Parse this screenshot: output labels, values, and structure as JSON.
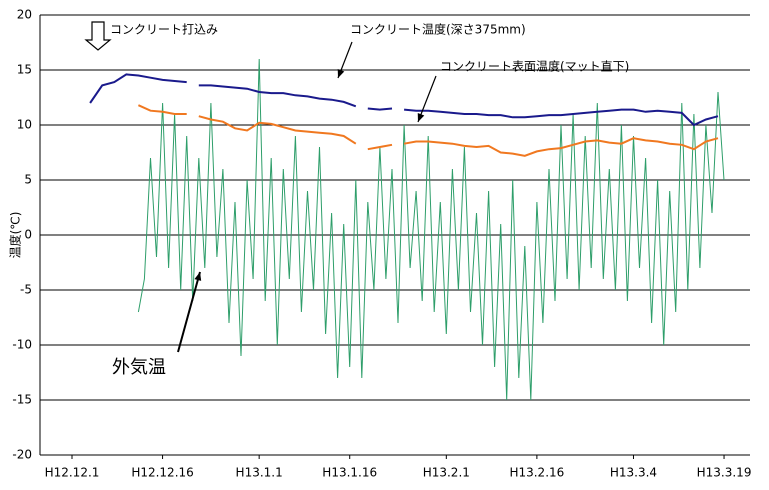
{
  "chart_data": {
    "type": "line",
    "y_label": "温度(℃)",
    "annotations": [
      "コンクリート打込み"
    ],
    "xlim": [
      -5.3,
      112.3
    ],
    "xticks": [
      {
        "value": 0,
        "label": "H12.12.1"
      },
      {
        "value": 15,
        "label": "H12.12.16"
      },
      {
        "value": 31,
        "label": "H13.1.1"
      },
      {
        "value": 46,
        "label": "H13.1.16"
      },
      {
        "value": 62,
        "label": "H13.2.1"
      },
      {
        "value": 77,
        "label": "H13.2.16"
      },
      {
        "value": 93,
        "label": "H13.3.4"
      },
      {
        "value": 108,
        "label": "H13.3.19"
      }
    ],
    "ylim": [
      -20,
      20
    ],
    "yticks": [
      -20,
      -15,
      -10,
      -5,
      0,
      5,
      10,
      15,
      20
    ],
    "grid": true,
    "series": [
      {
        "name": "コンクリート温度(深さ375mm)",
        "color": "#1a1a8c",
        "x": [
          3,
          5,
          7,
          9,
          11,
          13,
          15,
          17,
          19,
          20,
          21,
          23,
          25,
          27,
          29,
          31,
          33,
          35,
          37,
          39,
          41,
          43,
          45,
          47,
          48,
          49,
          51,
          53,
          54,
          55,
          57,
          59,
          61,
          63,
          65,
          67,
          69,
          71,
          73,
          75,
          77,
          79,
          81,
          83,
          85,
          87,
          89,
          91,
          93,
          95,
          97,
          99,
          101,
          103,
          105,
          107
        ],
        "values": [
          12,
          13.6,
          13.9,
          14.6,
          14.5,
          14.3,
          14.1,
          14.0,
          13.9,
          null,
          13.6,
          13.6,
          13.5,
          13.4,
          13.3,
          13.0,
          12.9,
          12.9,
          12.7,
          12.6,
          12.4,
          12.3,
          12.1,
          11.7,
          null,
          11.5,
          11.4,
          11.5,
          null,
          11.4,
          11.3,
          11.3,
          11.2,
          11.1,
          11.0,
          11.0,
          10.9,
          10.9,
          10.7,
          10.7,
          10.8,
          10.9,
          10.9,
          11.0,
          11.1,
          11.2,
          11.3,
          11.4,
          11.4,
          11.2,
          11.3,
          11.2,
          11.1,
          10.0,
          10.5,
          10.8
        ]
      },
      {
        "name": "コンクリート表面温度(マット直下)",
        "color": "#f07820",
        "x": [
          11,
          13,
          15,
          17,
          19,
          20,
          21,
          23,
          25,
          27,
          29,
          31,
          33,
          35,
          37,
          39,
          41,
          43,
          45,
          47,
          48,
          49,
          51,
          53,
          54,
          55,
          57,
          59,
          61,
          63,
          65,
          67,
          69,
          71,
          73,
          75,
          77,
          79,
          81,
          83,
          85,
          87,
          89,
          91,
          93,
          95,
          97,
          99,
          101,
          103,
          105,
          107
        ],
        "values": [
          11.8,
          11.3,
          11.2,
          11.0,
          11.0,
          null,
          10.8,
          10.5,
          10.3,
          9.7,
          9.5,
          10.2,
          10.1,
          9.8,
          9.5,
          9.4,
          9.3,
          9.2,
          9.0,
          8.3,
          null,
          7.8,
          8.0,
          8.2,
          null,
          8.3,
          8.5,
          8.5,
          8.4,
          8.3,
          8.1,
          8.0,
          8.1,
          7.5,
          7.4,
          7.2,
          7.6,
          7.8,
          7.9,
          8.2,
          8.5,
          8.6,
          8.4,
          8.3,
          8.8,
          8.6,
          8.5,
          8.3,
          8.2,
          7.8,
          8.5,
          8.8
        ]
      },
      {
        "name": "外気温",
        "color": "#2e9e6a",
        "x": [
          11,
          12,
          13,
          14,
          15,
          16,
          17,
          18,
          19,
          20,
          21,
          22,
          23,
          24,
          25,
          26,
          27,
          28,
          29,
          30,
          31,
          32,
          33,
          34,
          35,
          36,
          37,
          38,
          39,
          40,
          41,
          42,
          43,
          44,
          45,
          46,
          47,
          48,
          49,
          50,
          51,
          52,
          53,
          54,
          55,
          56,
          57,
          58,
          59,
          60,
          61,
          62,
          63,
          64,
          65,
          66,
          67,
          68,
          69,
          70,
          71,
          72,
          73,
          74,
          75,
          76,
          77,
          78,
          79,
          80,
          81,
          82,
          83,
          84,
          85,
          86,
          87,
          88,
          89,
          90,
          91,
          92,
          93,
          94,
          95,
          96,
          97,
          98,
          99,
          100,
          101,
          102,
          103,
          104,
          105,
          106,
          107,
          108
        ],
        "values": [
          -7,
          -4,
          7,
          -2,
          12,
          -3,
          11,
          -5,
          9,
          -6,
          7,
          -3,
          12,
          -2,
          6,
          -8,
          3,
          -11,
          5,
          -4,
          16,
          -6,
          7,
          -10,
          6,
          -4,
          9,
          -7,
          4,
          -5,
          8,
          -9,
          2,
          -13,
          1,
          -12,
          5,
          -13,
          3,
          -5,
          8,
          -4,
          6,
          -8,
          10,
          -3,
          4,
          -6,
          9,
          -7,
          3,
          -9,
          6,
          -5,
          8,
          -7,
          2,
          -10,
          4,
          -12,
          1,
          -15,
          5,
          -13,
          -1,
          -15,
          3,
          -8,
          6,
          -6,
          10,
          -4,
          11,
          -5,
          9,
          -3,
          12,
          -4,
          6,
          -5,
          10,
          -6,
          9,
          -3,
          7,
          -8,
          5,
          -10,
          4,
          -7,
          12,
          -5,
          11,
          -3,
          10,
          2,
          13,
          5
        ]
      }
    ]
  }
}
